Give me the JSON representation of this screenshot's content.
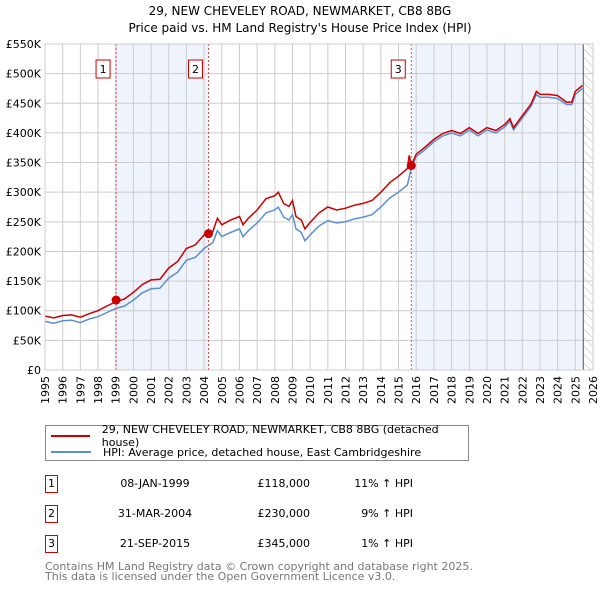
{
  "chart_data": {
    "type": "line",
    "title": "29, NEW CHEVELEY ROAD, NEWMARKET, CB8 8BG",
    "subtitle": "Price paid vs. HM Land Registry's House Price Index (HPI)",
    "xlim": [
      1995,
      2026
    ],
    "ylim": [
      0,
      550000
    ],
    "y_ticks": [
      0,
      50000,
      100000,
      150000,
      200000,
      250000,
      300000,
      350000,
      400000,
      450000,
      500000,
      550000
    ],
    "y_tick_labels": [
      "£0",
      "£50K",
      "£100K",
      "£150K",
      "£200K",
      "£250K",
      "£300K",
      "£350K",
      "£400K",
      "£450K",
      "£500K",
      "£550K"
    ],
    "x_ticks": [
      "1995",
      "1996",
      "1997",
      "1998",
      "1999",
      "2000",
      "2001",
      "2002",
      "2003",
      "2004",
      "2005",
      "2006",
      "2007",
      "2008",
      "2009",
      "2010",
      "2011",
      "2012",
      "2013",
      "2014",
      "2015",
      "2016",
      "2017",
      "2018",
      "2019",
      "2020",
      "2021",
      "2022",
      "2023",
      "2024",
      "2025",
      "2026"
    ],
    "grid": true,
    "forecast_start": 2025.45,
    "colors": {
      "property": "#cc0000",
      "hpi": "#5b8fd0",
      "shade": "#eef3fc"
    },
    "series": [
      {
        "name": "29, NEW CHEVELEY ROAD, NEWMARKET, CB8 8BG (detached house)",
        "key": "property",
        "points": [
          [
            1995,
            91
          ],
          [
            1995.5,
            88
          ],
          [
            1996,
            92
          ],
          [
            1996.5,
            93
          ],
          [
            1997,
            89
          ],
          [
            1997.5,
            95
          ],
          [
            1998,
            100
          ],
          [
            1998.5,
            108
          ],
          [
            1999,
            115
          ],
          [
            1999.5,
            120
          ],
          [
            2000,
            131
          ],
          [
            2000.5,
            144
          ],
          [
            2001,
            152
          ],
          [
            2001.5,
            153
          ],
          [
            2002,
            172
          ],
          [
            2002.5,
            183
          ],
          [
            2003,
            205
          ],
          [
            2003.5,
            211
          ],
          [
            2004,
            228
          ],
          [
            2004.25,
            230
          ],
          [
            2004.5,
            234
          ],
          [
            2004.75,
            256
          ],
          [
            2005,
            245
          ],
          [
            2005.5,
            253
          ],
          [
            2006,
            259
          ],
          [
            2006.2,
            245
          ],
          [
            2006.5,
            256
          ],
          [
            2007,
            270
          ],
          [
            2007.5,
            289
          ],
          [
            2008,
            294
          ],
          [
            2008.2,
            300
          ],
          [
            2008.5,
            281
          ],
          [
            2008.8,
            276
          ],
          [
            2009,
            286
          ],
          [
            2009.2,
            259
          ],
          [
            2009.5,
            253
          ],
          [
            2009.7,
            238
          ],
          [
            2010,
            249
          ],
          [
            2010.5,
            265
          ],
          [
            2011,
            275
          ],
          [
            2011.5,
            270
          ],
          [
            2012,
            273
          ],
          [
            2012.5,
            278
          ],
          [
            2013,
            281
          ],
          [
            2013.5,
            286
          ],
          [
            2014,
            300
          ],
          [
            2014.5,
            316
          ],
          [
            2015,
            327
          ],
          [
            2015.5,
            340
          ],
          [
            2015.6,
            362
          ],
          [
            2015.72,
            345
          ],
          [
            2016,
            364
          ],
          [
            2016.5,
            376
          ],
          [
            2017,
            389
          ],
          [
            2017.5,
            399
          ],
          [
            2018,
            404
          ],
          [
            2018.5,
            399
          ],
          [
            2019,
            409
          ],
          [
            2019.5,
            399
          ],
          [
            2020,
            409
          ],
          [
            2020.5,
            404
          ],
          [
            2021,
            414
          ],
          [
            2021.3,
            424
          ],
          [
            2021.5,
            409
          ],
          [
            2022,
            429
          ],
          [
            2022.5,
            449
          ],
          [
            2022.8,
            470
          ],
          [
            2023,
            465
          ],
          [
            2023.5,
            465
          ],
          [
            2024,
            463
          ],
          [
            2024.5,
            452
          ],
          [
            2024.8,
            452
          ],
          [
            2025,
            470
          ],
          [
            2025.4,
            480
          ]
        ]
      },
      {
        "name": "HPI: Average price, detached house, East Cambridgeshire",
        "key": "hpi",
        "points": [
          [
            1995,
            82
          ],
          [
            1995.5,
            79
          ],
          [
            1996,
            83
          ],
          [
            1996.5,
            84
          ],
          [
            1997,
            80
          ],
          [
            1997.5,
            86
          ],
          [
            1998,
            90
          ],
          [
            1998.5,
            97
          ],
          [
            1999,
            104
          ],
          [
            1999.5,
            108
          ],
          [
            2000,
            118
          ],
          [
            2000.5,
            130
          ],
          [
            2001,
            137
          ],
          [
            2001.5,
            138
          ],
          [
            2002,
            155
          ],
          [
            2002.5,
            165
          ],
          [
            2003,
            185
          ],
          [
            2003.5,
            190
          ],
          [
            2004,
            205
          ],
          [
            2004.25,
            210
          ],
          [
            2004.5,
            215
          ],
          [
            2004.75,
            235
          ],
          [
            2005,
            225
          ],
          [
            2005.5,
            232
          ],
          [
            2006,
            238
          ],
          [
            2006.2,
            225
          ],
          [
            2006.5,
            235
          ],
          [
            2007,
            248
          ],
          [
            2007.5,
            265
          ],
          [
            2008,
            270
          ],
          [
            2008.2,
            275
          ],
          [
            2008.5,
            258
          ],
          [
            2008.8,
            253
          ],
          [
            2009,
            262
          ],
          [
            2009.2,
            238
          ],
          [
            2009.5,
            232
          ],
          [
            2009.7,
            218
          ],
          [
            2010,
            228
          ],
          [
            2010.5,
            243
          ],
          [
            2011,
            252
          ],
          [
            2011.5,
            248
          ],
          [
            2012,
            250
          ],
          [
            2012.5,
            255
          ],
          [
            2013,
            258
          ],
          [
            2013.5,
            262
          ],
          [
            2014,
            275
          ],
          [
            2014.5,
            290
          ],
          [
            2015,
            300
          ],
          [
            2015.5,
            312
          ],
          [
            2015.72,
            341
          ],
          [
            2016,
            360
          ],
          [
            2016.5,
            372
          ],
          [
            2017,
            385
          ],
          [
            2017.5,
            395
          ],
          [
            2018,
            400
          ],
          [
            2018.5,
            395
          ],
          [
            2019,
            405
          ],
          [
            2019.5,
            395
          ],
          [
            2020,
            405
          ],
          [
            2020.5,
            400
          ],
          [
            2021,
            410
          ],
          [
            2021.3,
            420
          ],
          [
            2021.5,
            405
          ],
          [
            2022,
            425
          ],
          [
            2022.5,
            445
          ],
          [
            2022.8,
            465
          ],
          [
            2023,
            460
          ],
          [
            2023.5,
            460
          ],
          [
            2024,
            458
          ],
          [
            2024.5,
            448
          ],
          [
            2024.8,
            448
          ],
          [
            2025,
            465
          ],
          [
            2025.4,
            475
          ]
        ]
      }
    ],
    "value_unit": "thousands GBP",
    "sales": [
      {
        "label": "1",
        "x": 1999.02,
        "value": 118,
        "date": "08-JAN-1999",
        "price": "£118,000",
        "hpi": "11% ↑ HPI"
      },
      {
        "label": "2",
        "x": 2004.25,
        "value": 230,
        "date": "31-MAR-2004",
        "price": "£230,000",
        "hpi": "9% ↑ HPI"
      },
      {
        "label": "3",
        "x": 2015.72,
        "value": 345,
        "date": "21-SEP-2015",
        "price": "£345,000",
        "hpi": "1% ↑ HPI"
      }
    ]
  },
  "legend": {
    "property": "29, NEW CHEVELEY ROAD, NEWMARKET, CB8 8BG (detached house)",
    "hpi": "HPI: Average price, detached house, East Cambridgeshire"
  },
  "footer": {
    "line1": "Contains HM Land Registry data © Crown copyright and database right 2025.",
    "line2": "This data is licensed under the Open Government Licence v3.0."
  }
}
